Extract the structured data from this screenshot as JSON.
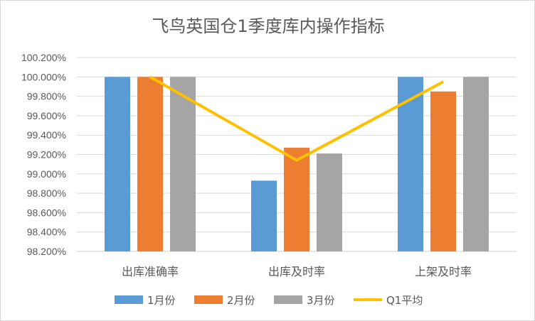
{
  "chart_data": {
    "type": "bar",
    "title": "飞鸟英国仓1季度库内操作指标",
    "categories": [
      "出库准确率",
      "出库及时率",
      "上架及时率"
    ],
    "series": [
      {
        "name": "1月份",
        "color": "#5b9bd5",
        "values": [
          100.0,
          98.93,
          100.0
        ]
      },
      {
        "name": "2月份",
        "color": "#ed7d31",
        "values": [
          100.0,
          99.27,
          99.85
        ]
      },
      {
        "name": "3月份",
        "color": "#a5a5a5",
        "values": [
          100.0,
          99.21,
          100.0
        ]
      }
    ],
    "line_series": {
      "name": "Q1平均",
      "color": "#ffc000",
      "values": [
        100.0,
        99.14,
        99.95
      ]
    },
    "ylim": [
      98.2,
      100.2
    ],
    "yticks": [
      "98.200%",
      "98.400%",
      "98.600%",
      "98.800%",
      "99.000%",
      "99.200%",
      "99.400%",
      "99.600%",
      "99.800%",
      "100.000%",
      "100.200%"
    ],
    "grid": true,
    "legend": "bottom"
  }
}
